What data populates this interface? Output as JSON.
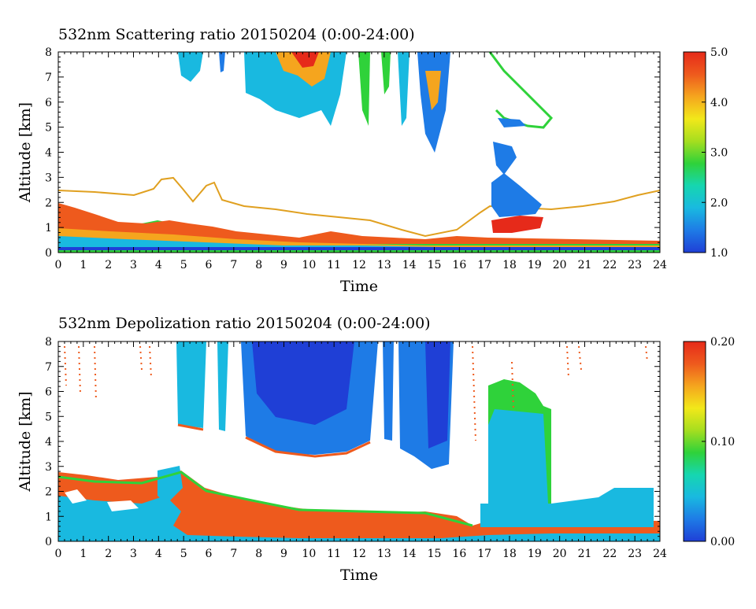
{
  "colors": {
    "scale": [
      "#1f3fd6",
      "#1e7be6",
      "#19b9e0",
      "#16d6b0",
      "#2fd23a",
      "#a6de1f",
      "#f2e81a",
      "#f5a51e",
      "#ee5a1d",
      "#e62a1a"
    ]
  },
  "chart_data": [
    {
      "type": "heatmap",
      "title": "532nm Scattering ratio  20150204 (0:00-24:00)",
      "xlabel": "Time",
      "ylabel": "Altitude [km]",
      "xlim": [
        0,
        24
      ],
      "ylim": [
        0,
        8
      ],
      "x_ticks": [
        "0",
        "1",
        "2",
        "3",
        "4",
        "5",
        "6",
        "7",
        "8",
        "9",
        "10",
        "11",
        "12",
        "13",
        "14",
        "15",
        "16",
        "17",
        "18",
        "19",
        "20",
        "21",
        "22",
        "23",
        "24"
      ],
      "y_ticks": [
        "0",
        "1",
        "2",
        "3",
        "4",
        "5",
        "6",
        "7",
        "8"
      ],
      "colorbar": {
        "min": 1.0,
        "max": 5.0,
        "ticks": [
          "1.0",
          "2.0",
          "3.0",
          "4.0",
          "5.0"
        ]
      }
    },
    {
      "type": "heatmap",
      "title": "532nm Depolization ratio  20150204 (0:00-24:00)",
      "xlabel": "Time",
      "ylabel": "Altitude [km]",
      "xlim": [
        0,
        24
      ],
      "ylim": [
        0,
        8
      ],
      "x_ticks": [
        "0",
        "1",
        "2",
        "3",
        "4",
        "5",
        "6",
        "7",
        "8",
        "9",
        "10",
        "11",
        "12",
        "13",
        "14",
        "15",
        "16",
        "17",
        "18",
        "19",
        "20",
        "21",
        "22",
        "23",
        "24"
      ],
      "y_ticks": [
        "0",
        "1",
        "2",
        "3",
        "4",
        "5",
        "6",
        "7",
        "8"
      ],
      "colorbar": {
        "min": 0.0,
        "max": 0.2,
        "ticks": [
          "0.00",
          "0.10",
          "0.20"
        ]
      }
    }
  ]
}
